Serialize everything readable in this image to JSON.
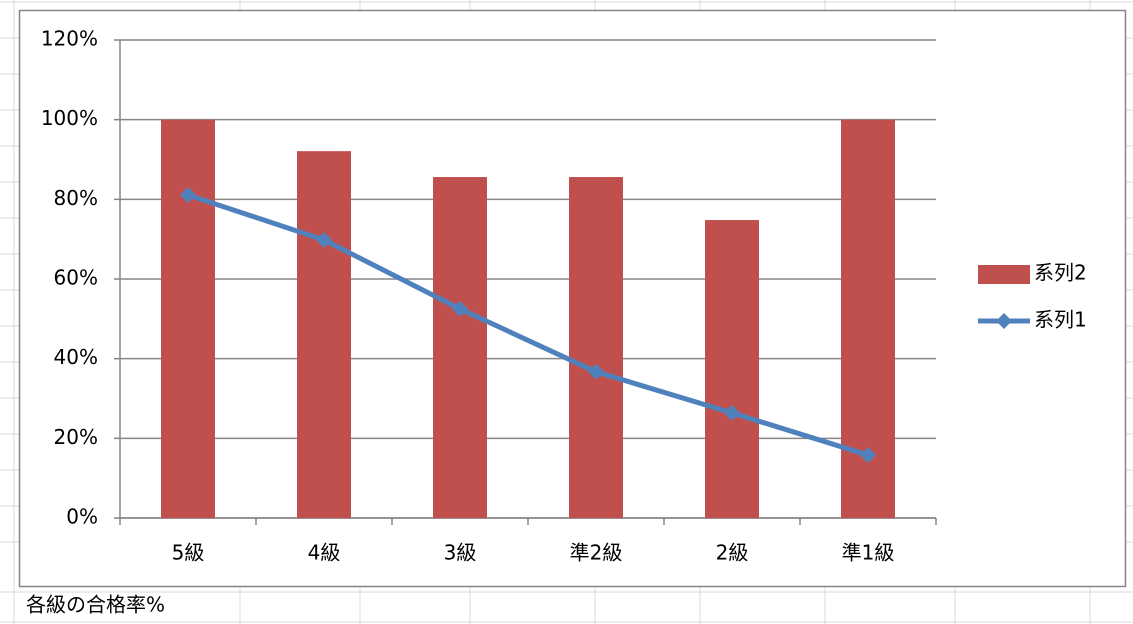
{
  "chart_data": {
    "type": "bar",
    "categories": [
      "5級",
      "4級",
      "3級",
      "準2級",
      "2級",
      "準1級"
    ],
    "series": [
      {
        "name": "系列2",
        "type": "bar",
        "color": "#c0504d",
        "values": [
          100,
          92.1,
          85.6,
          85.6,
          74.8,
          100
        ]
      },
      {
        "name": "系列1",
        "type": "line",
        "color": "#4f81bd",
        "values": [
          81.1,
          69.8,
          52.5,
          36.7,
          26.4,
          15.8
        ]
      }
    ],
    "ylim": [
      0,
      120
    ],
    "yticks": [
      {
        "value": 0,
        "label": "0%"
      },
      {
        "value": 20,
        "label": "20%"
      },
      {
        "value": 40,
        "label": "40%"
      },
      {
        "value": 60,
        "label": "60%"
      },
      {
        "value": 80,
        "label": "80%"
      },
      {
        "value": 100,
        "label": "100%"
      },
      {
        "value": 120,
        "label": "120%"
      }
    ],
    "grid": true,
    "legend": "right"
  },
  "cell_text": "各級の合格率%"
}
